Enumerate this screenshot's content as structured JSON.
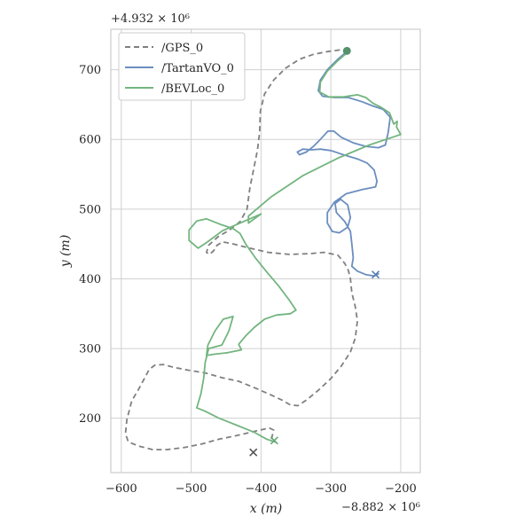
{
  "chart_data": {
    "type": "line",
    "xlabel": "x (m)",
    "ylabel": "y (m)",
    "x_offset_label": "−8.882 × 10⁶",
    "y_offset_label": "+4.932 × 10⁶",
    "xlim": [
      -615,
      -172
    ],
    "ylim": [
      122,
      758
    ],
    "x_ticks": [
      -600,
      -500,
      -400,
      -300,
      -200
    ],
    "x_tick_labels": [
      "−600",
      "−500",
      "−400",
      "−300",
      "−200"
    ],
    "y_ticks": [
      200,
      300,
      400,
      500,
      600,
      700
    ],
    "y_tick_labels": [
      "200",
      "300",
      "400",
      "500",
      "600",
      "700"
    ],
    "grid": true,
    "legend_position": "top-left",
    "series": [
      {
        "name": "/GPS_0",
        "color": "#808080",
        "dashed": true,
        "end_marker": "x",
        "points": [
          [
            -385,
            170
          ],
          [
            -382,
            183
          ],
          [
            -388,
            186
          ],
          [
            -410,
            181
          ],
          [
            -435,
            175
          ],
          [
            -460,
            170
          ],
          [
            -485,
            163
          ],
          [
            -510,
            158
          ],
          [
            -535,
            155
          ],
          [
            -555,
            155
          ],
          [
            -575,
            160
          ],
          [
            -590,
            166
          ],
          [
            -594,
            178
          ],
          [
            -592,
            198
          ],
          [
            -585,
            225
          ],
          [
            -575,
            242
          ],
          [
            -567,
            257
          ],
          [
            -560,
            270
          ],
          [
            -552,
            276
          ],
          [
            -540,
            277
          ],
          [
            -525,
            273
          ],
          [
            -505,
            269
          ],
          [
            -480,
            265
          ],
          [
            -455,
            258
          ],
          [
            -432,
            253
          ],
          [
            -405,
            242
          ],
          [
            -385,
            233
          ],
          [
            -370,
            226
          ],
          [
            -358,
            219
          ],
          [
            -347,
            218
          ],
          [
            -335,
            226
          ],
          [
            -318,
            240
          ],
          [
            -300,
            257
          ],
          [
            -285,
            275
          ],
          [
            -272,
            295
          ],
          [
            -265,
            315
          ],
          [
            -262,
            340
          ],
          [
            -265,
            360
          ],
          [
            -270,
            380
          ],
          [
            -272,
            400
          ],
          [
            -275,
            412
          ],
          [
            -280,
            422
          ],
          [
            -290,
            434
          ],
          [
            -310,
            438
          ],
          [
            -330,
            436
          ],
          [
            -360,
            435
          ],
          [
            -390,
            438
          ],
          [
            -420,
            445
          ],
          [
            -440,
            450
          ],
          [
            -455,
            453
          ],
          [
            -463,
            448
          ],
          [
            -468,
            440
          ],
          [
            -474,
            435
          ],
          [
            -478,
            438
          ],
          [
            -475,
            448
          ],
          [
            -462,
            460
          ],
          [
            -445,
            470
          ],
          [
            -430,
            482
          ],
          [
            -420,
            500
          ],
          [
            -416,
            530
          ],
          [
            -410,
            560
          ],
          [
            -405,
            585
          ],
          [
            -402,
            610
          ],
          [
            -401,
            640
          ],
          [
            -395,
            665
          ],
          [
            -382,
            685
          ],
          [
            -365,
            702
          ],
          [
            -345,
            715
          ],
          [
            -325,
            722
          ],
          [
            -305,
            726
          ],
          [
            -290,
            728
          ],
          [
            -282,
            729
          ]
        ]
      },
      {
        "name": "/TartanVO_0",
        "color": "#6b8ebf",
        "dashed": false,
        "end_marker": "x",
        "points": [
          [
            -275,
            728
          ],
          [
            -290,
            715
          ],
          [
            -305,
            700
          ],
          [
            -315,
            685
          ],
          [
            -318,
            670
          ],
          [
            -312,
            662
          ],
          [
            -295,
            660
          ],
          [
            -275,
            660
          ],
          [
            -255,
            654
          ],
          [
            -240,
            648
          ],
          [
            -225,
            643
          ],
          [
            -215,
            632
          ],
          [
            -218,
            610
          ],
          [
            -222,
            592
          ],
          [
            -232,
            588
          ],
          [
            -250,
            590
          ],
          [
            -268,
            595
          ],
          [
            -285,
            603
          ],
          [
            -296,
            612
          ],
          [
            -304,
            612
          ],
          [
            -315,
            600
          ],
          [
            -325,
            590
          ],
          [
            -335,
            582
          ],
          [
            -345,
            578
          ],
          [
            -348,
            582
          ],
          [
            -340,
            586
          ],
          [
            -328,
            585
          ],
          [
            -315,
            586
          ],
          [
            -300,
            584
          ],
          [
            -282,
            578
          ],
          [
            -262,
            572
          ],
          [
            -248,
            566
          ],
          [
            -238,
            556
          ],
          [
            -234,
            540
          ],
          [
            -236,
            532
          ],
          [
            -255,
            528
          ],
          [
            -278,
            522
          ],
          [
            -295,
            510
          ],
          [
            -305,
            495
          ],
          [
            -305,
            480
          ],
          [
            -298,
            468
          ],
          [
            -288,
            466
          ],
          [
            -276,
            474
          ],
          [
            -272,
            488
          ],
          [
            -276,
            506
          ],
          [
            -286,
            514
          ],
          [
            -294,
            508
          ],
          [
            -292,
            495
          ],
          [
            -280,
            482
          ],
          [
            -272,
            468
          ],
          [
            -270,
            450
          ],
          [
            -268,
            430
          ],
          [
            -270,
            418
          ],
          [
            -262,
            411
          ],
          [
            -250,
            406
          ],
          [
            -238,
            404
          ],
          [
            -232,
            407
          ]
        ]
      },
      {
        "name": "/BEVLoc_0",
        "color": "#73b57f",
        "dashed": false,
        "end_marker": "x",
        "points": [
          [
            -276,
            725
          ],
          [
            -290,
            713
          ],
          [
            -305,
            698
          ],
          [
            -315,
            682
          ],
          [
            -316,
            668
          ],
          [
            -303,
            661
          ],
          [
            -282,
            661
          ],
          [
            -262,
            664
          ],
          [
            -250,
            660
          ],
          [
            -240,
            652
          ],
          [
            -228,
            646
          ],
          [
            -216,
            638
          ],
          [
            -210,
            622
          ],
          [
            -205,
            626
          ],
          [
            -206,
            618
          ],
          [
            -200,
            607
          ],
          [
            -245,
            592
          ],
          [
            -290,
            573
          ],
          [
            -340,
            548
          ],
          [
            -385,
            518
          ],
          [
            -418,
            490
          ],
          [
            -418,
            480
          ],
          [
            -400,
            493
          ],
          [
            -455,
            469
          ],
          [
            -478,
            452
          ],
          [
            -490,
            444
          ],
          [
            -503,
            455
          ],
          [
            -503,
            470
          ],
          [
            -492,
            483
          ],
          [
            -478,
            486
          ],
          [
            -458,
            478
          ],
          [
            -440,
            472
          ],
          [
            -430,
            465
          ],
          [
            -422,
            450
          ],
          [
            -408,
            430
          ],
          [
            -392,
            410
          ],
          [
            -375,
            390
          ],
          [
            -360,
            370
          ],
          [
            -350,
            355
          ],
          [
            -358,
            350
          ],
          [
            -378,
            348
          ],
          [
            -395,
            342
          ],
          [
            -410,
            330
          ],
          [
            -422,
            318
          ],
          [
            -432,
            306
          ],
          [
            -428,
            298
          ],
          [
            -448,
            294
          ],
          [
            -466,
            292
          ],
          [
            -478,
            290
          ],
          [
            -476,
            305
          ],
          [
            -466,
            325
          ],
          [
            -454,
            342
          ],
          [
            -440,
            346
          ],
          [
            -446,
            325
          ],
          [
            -456,
            305
          ],
          [
            -475,
            300
          ],
          [
            -480,
            280
          ],
          [
            -482,
            258
          ],
          [
            -486,
            235
          ],
          [
            -492,
            215
          ],
          [
            -480,
            210
          ],
          [
            -460,
            200
          ],
          [
            -435,
            190
          ],
          [
            -410,
            180
          ],
          [
            -392,
            170
          ],
          [
            -380,
            166
          ]
        ]
      }
    ],
    "start_marker": {
      "x": -277,
      "y": 727,
      "color": "#55916b"
    },
    "end_markers": [
      {
        "x": -411,
        "y": 151,
        "color": "#555555"
      },
      {
        "x": -236,
        "y": 406,
        "color": "#5a7fb5"
      },
      {
        "x": -381,
        "y": 168,
        "color": "#66a876"
      }
    ]
  }
}
